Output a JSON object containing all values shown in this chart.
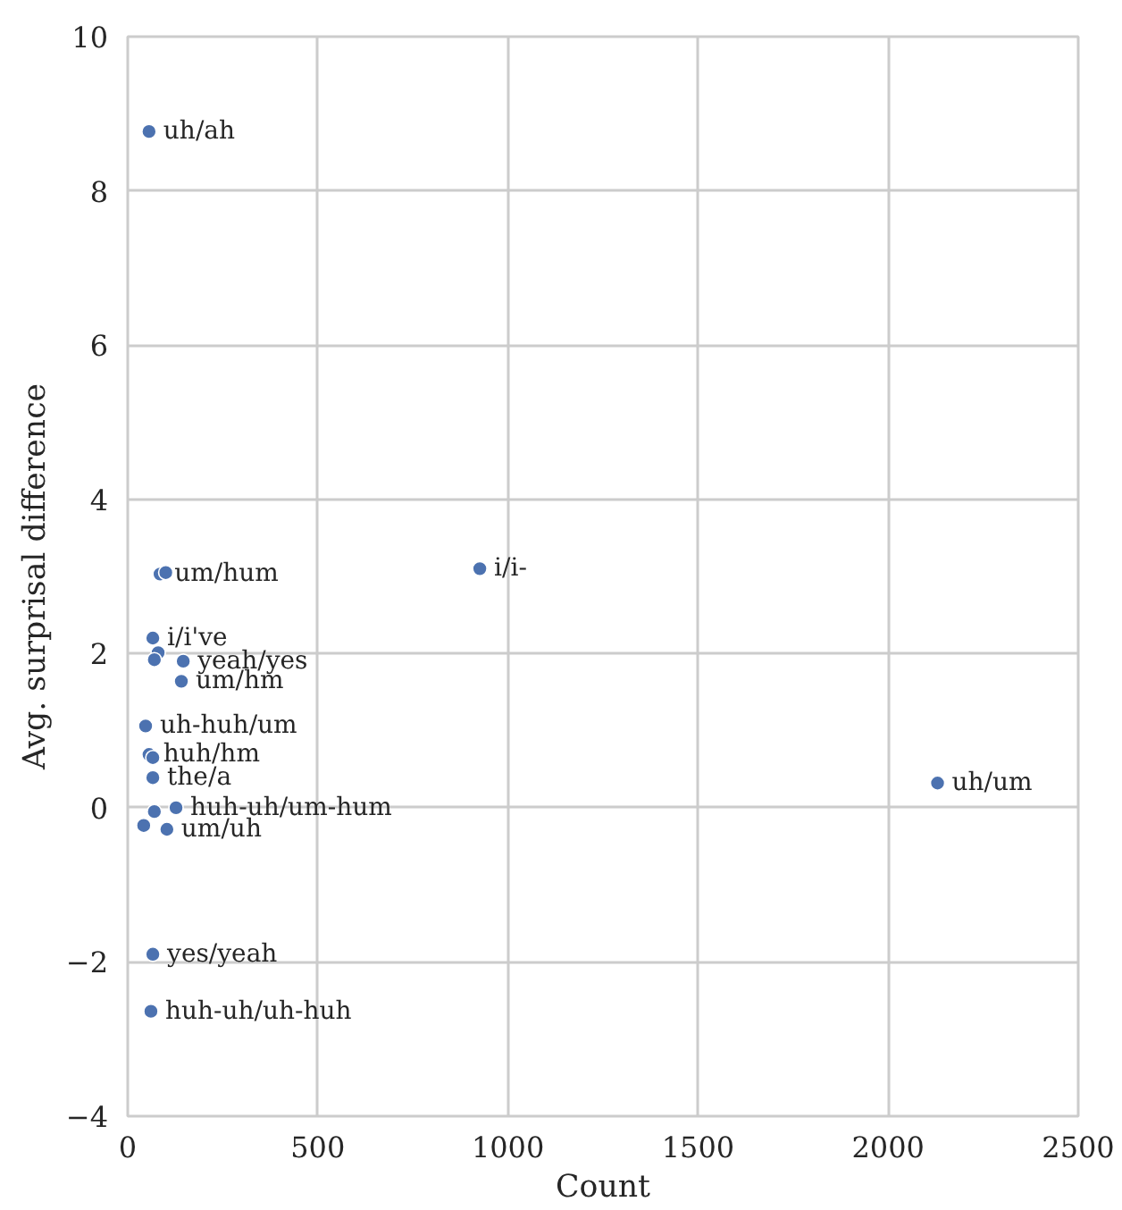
{
  "chart_data": {
    "type": "scatter",
    "xlabel": "Count",
    "ylabel": "Avg. surprisal difference",
    "xlim": [
      0,
      2500
    ],
    "xticks": [
      0,
      500,
      1000,
      1500,
      2000,
      2500
    ],
    "ylim": [
      -4,
      10
    ],
    "yticks": [
      {
        "value": -4,
        "label": "−4"
      },
      {
        "value": -2,
        "label": "−2"
      },
      0,
      2,
      4,
      6,
      8,
      10
    ],
    "grid": true,
    "marker": "circle",
    "x": [
      56,
      85,
      100,
      926,
      66,
      80,
      70,
      146,
      141,
      47,
      56,
      66,
      66,
      127,
      70,
      42,
      103,
      66,
      61,
      2130
    ],
    "series": [
      {
        "color": "#4c72b0",
        "values": [
          8.77,
          3.03,
          3.05,
          3.1,
          2.2,
          2.01,
          1.92,
          1.9,
          1.64,
          1.06,
          0.69,
          0.65,
          0.39,
          0.0,
          -0.05,
          -0.23,
          -0.28,
          -1.9,
          -2.64,
          0.32
        ]
      }
    ],
    "annotations": [
      {
        "text": "uh/ah",
        "x": 56,
        "y": 8.77
      },
      {
        "text": "um/hum",
        "x": 85,
        "y": 3.03
      },
      {
        "text": "i/i-",
        "x": 926,
        "y": 3.1
      },
      {
        "text": "i/i've",
        "x": 66,
        "y": 2.2
      },
      {
        "text": "yeah/yes",
        "x": 146,
        "y": 1.9
      },
      {
        "text": "um/hm",
        "x": 141,
        "y": 1.64
      },
      {
        "text": "uh-huh/um",
        "x": 47,
        "y": 1.06
      },
      {
        "text": "huh/hm",
        "x": 56,
        "y": 0.69
      },
      {
        "text": "the/a",
        "x": 66,
        "y": 0.39
      },
      {
        "text": "huh-uh/um-hum",
        "x": 127,
        "y": 0.0
      },
      {
        "text": "um/uh",
        "x": 103,
        "y": -0.28
      },
      {
        "text": "yes/yeah",
        "x": 66,
        "y": -1.9
      },
      {
        "text": "huh-uh/uh-huh",
        "x": 61,
        "y": -2.64
      },
      {
        "text": "uh/um",
        "x": 2130,
        "y": 0.32
      }
    ]
  }
}
